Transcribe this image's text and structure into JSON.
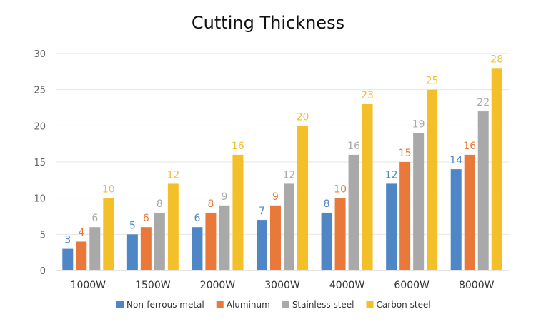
{
  "chart_data": {
    "type": "bar",
    "title": "Cutting Thickness",
    "xlabel": "",
    "ylabel": "",
    "categories": [
      "1000W",
      "1500W",
      "2000W",
      "3000W",
      "4000W",
      "6000W",
      "8000W"
    ],
    "ylim": [
      0,
      30
    ],
    "yticks": [
      0,
      5,
      10,
      15,
      20,
      25,
      30
    ],
    "grid": true,
    "legend_position": "bottom",
    "series": [
      {
        "name": "Non-ferrous metal",
        "color": "#4f86c6",
        "values": [
          3,
          5,
          6,
          7,
          8,
          12,
          14
        ]
      },
      {
        "name": "Aluminum",
        "color": "#e8793a",
        "values": [
          4,
          6,
          8,
          9,
          10,
          15,
          16
        ]
      },
      {
        "name": "Stainless steel",
        "color": "#a9a9a9",
        "values": [
          6,
          8,
          9,
          12,
          16,
          19,
          22
        ]
      },
      {
        "name": "Carbon steel",
        "color": "#f4c02a",
        "values": [
          10,
          12,
          16,
          20,
          23,
          25,
          28
        ]
      }
    ]
  }
}
